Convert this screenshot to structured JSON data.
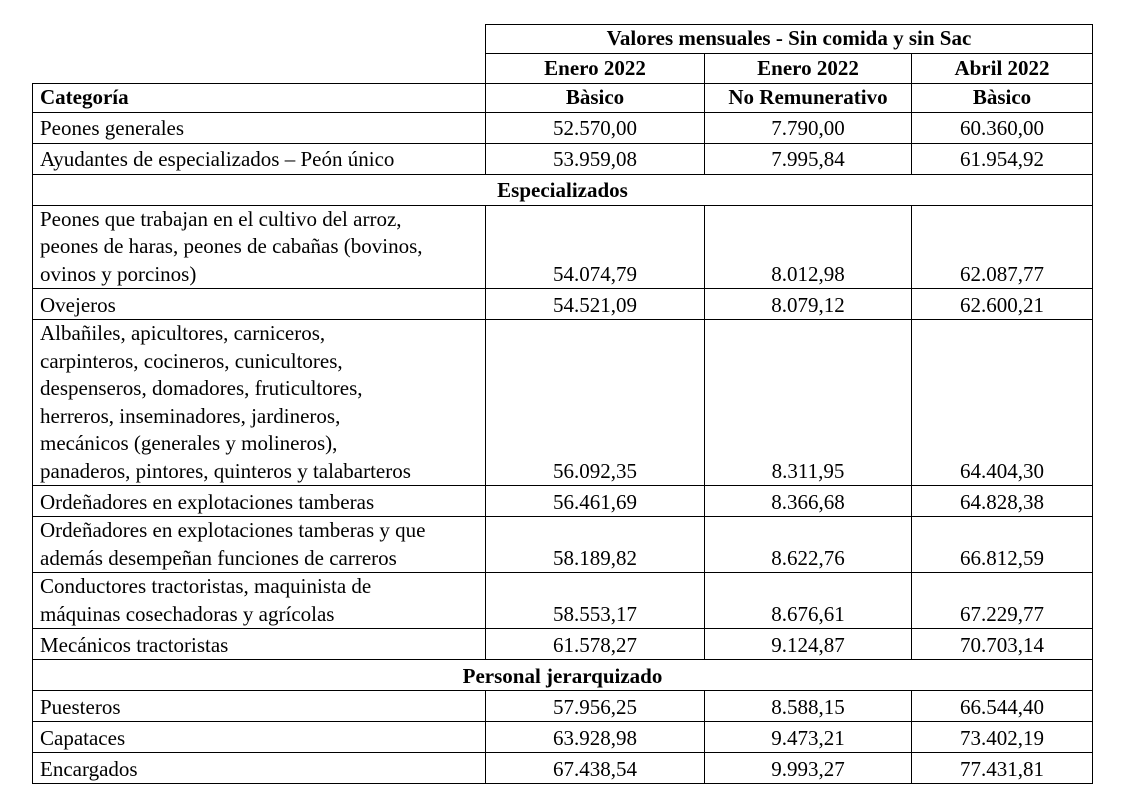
{
  "header": {
    "group_title": "Valores mensuales - Sin comida y sin Sac",
    "periods": [
      "Enero 2022",
      "Enero 2022",
      "Abril 2022"
    ],
    "category_label": "Categoría",
    "types": [
      "Bàsico",
      "No Remunerativo",
      "Bàsico"
    ]
  },
  "rows": [
    {
      "lines": [
        "Peones generales"
      ],
      "values": [
        "52.570,00",
        "7.790,00",
        "60.360,00"
      ]
    },
    {
      "lines": [
        "Ayudantes de especializados – Peón único"
      ],
      "values": [
        "53.959,08",
        "7.995,84",
        "61.954,92"
      ]
    },
    {
      "section": "Especializados"
    },
    {
      "lines": [
        "Peones que trabajan en el cultivo del arroz,",
        "peones de haras, peones de cabañas (bovinos,",
        "ovinos y porcinos)"
      ],
      "values": [
        "54.074,79",
        "8.012,98",
        "62.087,77"
      ]
    },
    {
      "lines": [
        "Ovejeros"
      ],
      "values": [
        "54.521,09",
        "8.079,12",
        "62.600,21"
      ]
    },
    {
      "lines": [
        "Albañiles, apicultores, carniceros,",
        "carpinteros, cocineros, cunicultores,",
        "despenseros, domadores, fruticultores,",
        "herreros, inseminadores, jardineros,",
        "mecánicos (generales y molineros),",
        "panaderos, pintores, quinteros y talabarteros"
      ],
      "values": [
        "56.092,35",
        "8.311,95",
        "64.404,30"
      ]
    },
    {
      "lines": [
        "Ordeñadores en explotaciones tamberas"
      ],
      "values": [
        "56.461,69",
        "8.366,68",
        "64.828,38"
      ]
    },
    {
      "lines": [
        "Ordeñadores en explotaciones tamberas y que",
        "además desempeñan funciones de carreros"
      ],
      "values": [
        "58.189,82",
        "8.622,76",
        "66.812,59"
      ]
    },
    {
      "lines": [
        "Conductores tractoristas, maquinista de",
        "máquinas cosechadoras y agrícolas"
      ],
      "values": [
        "58.553,17",
        "8.676,61",
        "67.229,77"
      ]
    },
    {
      "lines": [
        "Mecánicos tractoristas"
      ],
      "values": [
        "61.578,27",
        "9.124,87",
        "70.703,14"
      ]
    },
    {
      "section": "Personal jerarquizado"
    },
    {
      "lines": [
        "Puesteros"
      ],
      "values": [
        "57.956,25",
        "8.588,15",
        "66.544,40"
      ]
    },
    {
      "lines": [
        "Capataces"
      ],
      "values": [
        "63.928,98",
        "9.473,21",
        "73.402,19"
      ]
    },
    {
      "lines": [
        "Encargados"
      ],
      "values": [
        "67.438,54",
        "9.993,27",
        "77.431,81"
      ]
    }
  ]
}
